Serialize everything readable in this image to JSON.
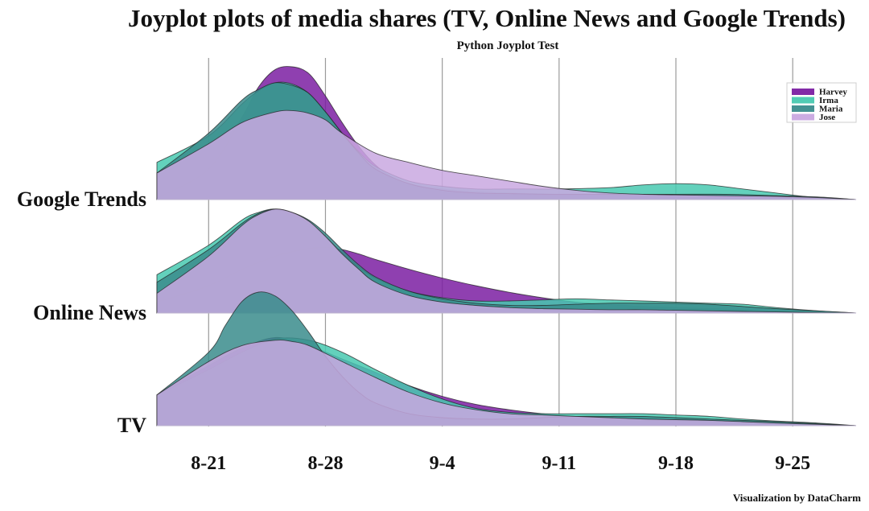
{
  "chart_data": {
    "type": "area",
    "subtype": "joyplot",
    "title": "Joyplot plots of media shares (TV, Online News and Google Trends)",
    "subtitle": "Python Joyplot Test",
    "credit": "Visualization by DataCharm",
    "x_ticks": [
      "8-21",
      "8-28",
      "9-4",
      "9-11",
      "9-18",
      "9-25"
    ],
    "x_tick_days": [
      0,
      7,
      14,
      21,
      28,
      35
    ],
    "xlim": [
      -3.1,
      38.8
    ],
    "grid": "vertical",
    "legend_position": "top-right",
    "rows": [
      {
        "label": "Google Trends",
        "series": [
          {
            "name": "Harvey",
            "color": "#7b1fa2",
            "x": [
              -3.1,
              0,
              2,
              3,
              4,
              5,
              6,
              7,
              8,
              9,
              10,
              11,
              12,
              14,
              16,
              18,
              21,
              25,
              28,
              30,
              33,
              35,
              36.5,
              38.8
            ],
            "y": [
              0.01,
              0.23,
              0.62,
              0.85,
              0.98,
              1.0,
              0.95,
              0.78,
              0.58,
              0.4,
              0.26,
              0.17,
              0.12,
              0.08,
              0.06,
              0.05,
              0.04,
              0.03,
              0.03,
              0.03,
              0.02,
              0.015,
              0.01,
              0.0
            ]
          },
          {
            "name": "Irma",
            "color": "#48c9b0",
            "x": [
              -3.1,
              0,
              2,
              3,
              4,
              5,
              6,
              7,
              8,
              9,
              10,
              12,
              14,
              16,
              18,
              21,
              24,
              26,
              28,
              30,
              32,
              34,
              36,
              38.8
            ],
            "y": [
              0.28,
              0.48,
              0.72,
              0.82,
              0.88,
              0.87,
              0.8,
              0.66,
              0.5,
              0.36,
              0.25,
              0.14,
              0.1,
              0.08,
              0.08,
              0.08,
              0.09,
              0.11,
              0.12,
              0.11,
              0.08,
              0.05,
              0.02,
              0.0
            ]
          },
          {
            "name": "Maria",
            "color": "#3a8c8c",
            "x": [
              -3.1,
              0,
              2,
              3,
              4,
              5,
              6,
              7,
              8,
              9,
              10,
              12,
              14,
              16,
              18,
              21,
              25,
              28,
              31,
              34,
              36.5,
              38.8
            ],
            "y": [
              0.2,
              0.5,
              0.75,
              0.83,
              0.88,
              0.86,
              0.8,
              0.66,
              0.5,
              0.35,
              0.23,
              0.12,
              0.07,
              0.05,
              0.045,
              0.04,
              0.04,
              0.04,
              0.04,
              0.03,
              0.02,
              0.0
            ]
          },
          {
            "name": "Jose",
            "color": "#c9a8e0",
            "x": [
              -3.1,
              0,
              2,
              4,
              5,
              6,
              7,
              8,
              10,
              12,
              14,
              16,
              18,
              20,
              22,
              24,
              26,
              28,
              31,
              34,
              36.5,
              38.8
            ],
            "y": [
              0.2,
              0.42,
              0.58,
              0.66,
              0.67,
              0.65,
              0.6,
              0.5,
              0.35,
              0.28,
              0.22,
              0.18,
              0.14,
              0.1,
              0.07,
              0.05,
              0.04,
              0.035,
              0.03,
              0.025,
              0.015,
              0.0
            ]
          }
        ]
      },
      {
        "label": "Online News",
        "series": [
          {
            "name": "Harvey",
            "color": "#7b1fa2",
            "x": [
              -3.1,
              0,
              2,
              4,
              5,
              6,
              7,
              8,
              9,
              10,
              12,
              14,
              16,
              18,
              20,
              22,
              24,
              26,
              28,
              30,
              32,
              34,
              36.5,
              38.8
            ],
            "y": [
              0.1,
              0.25,
              0.4,
              0.52,
              0.56,
              0.59,
              0.6,
              0.58,
              0.54,
              0.49,
              0.4,
              0.32,
              0.25,
              0.19,
              0.14,
              0.1,
              0.08,
              0.06,
              0.05,
              0.04,
              0.03,
              0.02,
              0.01,
              0.0
            ]
          },
          {
            "name": "Irma",
            "color": "#48c9b0",
            "x": [
              -3.1,
              0,
              2,
              3,
              4,
              5,
              6,
              7,
              8,
              9,
              10,
              12,
              14,
              16,
              18,
              20,
              22,
              24,
              26,
              28,
              30,
              32,
              34,
              36.5,
              38.8
            ],
            "y": [
              0.35,
              0.62,
              0.85,
              0.92,
              0.95,
              0.9,
              0.82,
              0.7,
              0.55,
              0.42,
              0.32,
              0.2,
              0.14,
              0.11,
              0.11,
              0.12,
              0.13,
              0.12,
              0.11,
              0.1,
              0.09,
              0.08,
              0.05,
              0.02,
              0.0
            ]
          },
          {
            "name": "Maria",
            "color": "#3a8c8c",
            "x": [
              -3.1,
              0,
              2,
              3,
              4,
              5,
              6,
              7,
              8,
              9,
              10,
              12,
              14,
              16,
              18,
              20,
              22,
              24,
              26,
              28,
              30,
              32,
              34,
              36.5,
              38.8
            ],
            "y": [
              0.28,
              0.58,
              0.82,
              0.91,
              0.95,
              0.92,
              0.85,
              0.73,
              0.58,
              0.44,
              0.33,
              0.2,
              0.13,
              0.09,
              0.07,
              0.07,
              0.08,
              0.09,
              0.09,
              0.09,
              0.08,
              0.06,
              0.04,
              0.02,
              0.0
            ]
          },
          {
            "name": "Jose",
            "color": "#c9a8e0",
            "x": [
              -3.1,
              0,
              2,
              3,
              4,
              5,
              6,
              7,
              8,
              9,
              10,
              12,
              14,
              16,
              18,
              20,
              22,
              24,
              26,
              28,
              30,
              32,
              34,
              36.5,
              38.8
            ],
            "y": [
              0.18,
              0.52,
              0.8,
              0.9,
              0.95,
              0.92,
              0.84,
              0.7,
              0.54,
              0.4,
              0.28,
              0.16,
              0.1,
              0.07,
              0.05,
              0.04,
              0.035,
              0.03,
              0.03,
              0.025,
              0.02,
              0.015,
              0.01,
              0.005,
              0.0
            ]
          }
        ]
      },
      {
        "label": "TV",
        "series": [
          {
            "name": "Harvey",
            "color": "#7b1fa2",
            "x": [
              -3.1,
              0,
              2,
              4,
              6,
              8,
              10,
              12,
              14,
              16,
              18,
              20,
              22,
              24,
              26,
              28,
              30,
              32,
              34,
              36.5,
              38.8
            ],
            "y": [
              0.23,
              0.45,
              0.58,
              0.66,
              0.6,
              0.5,
              0.4,
              0.3,
              0.22,
              0.16,
              0.12,
              0.09,
              0.07,
              0.05,
              0.04,
              0.04,
              0.03,
              0.03,
              0.02,
              0.01,
              0.0
            ]
          },
          {
            "name": "Irma",
            "color": "#48c9b0",
            "x": [
              -3.1,
              0,
              2,
              4,
              6,
              8,
              10,
              12,
              14,
              16,
              18,
              20,
              22,
              24,
              26,
              28,
              30,
              32,
              34,
              36.5,
              38.8
            ],
            "y": [
              0.23,
              0.42,
              0.55,
              0.65,
              0.64,
              0.55,
              0.42,
              0.3,
              0.2,
              0.13,
              0.1,
              0.09,
              0.09,
              0.09,
              0.09,
              0.08,
              0.07,
              0.05,
              0.035,
              0.02,
              0.0
            ]
          },
          {
            "name": "Maria",
            "color": "#3a8c8c",
            "x": [
              -3.1,
              0,
              1,
              2,
              3,
              4,
              5,
              6,
              7,
              8,
              9,
              10,
              12,
              14,
              16,
              18,
              20,
              22,
              24,
              26,
              28,
              30,
              32,
              34,
              36.5,
              38.8
            ],
            "y": [
              0.23,
              0.55,
              0.75,
              0.93,
              1.0,
              0.97,
              0.86,
              0.7,
              0.52,
              0.37,
              0.25,
              0.17,
              0.09,
              0.06,
              0.05,
              0.05,
              0.06,
              0.07,
              0.07,
              0.07,
              0.06,
              0.05,
              0.04,
              0.03,
              0.015,
              0.0
            ]
          },
          {
            "name": "Jose",
            "color": "#c9a8e0",
            "x": [
              -3.1,
              0,
              2,
              4,
              5,
              6,
              8,
              10,
              12,
              14,
              16,
              18,
              20,
              22,
              24,
              26,
              28,
              30,
              32,
              34,
              36.5,
              38.8
            ],
            "y": [
              0.23,
              0.48,
              0.6,
              0.64,
              0.63,
              0.6,
              0.48,
              0.36,
              0.25,
              0.17,
              0.12,
              0.09,
              0.08,
              0.07,
              0.06,
              0.05,
              0.045,
              0.04,
              0.03,
              0.02,
              0.01,
              0.0
            ]
          }
        ]
      }
    ]
  }
}
